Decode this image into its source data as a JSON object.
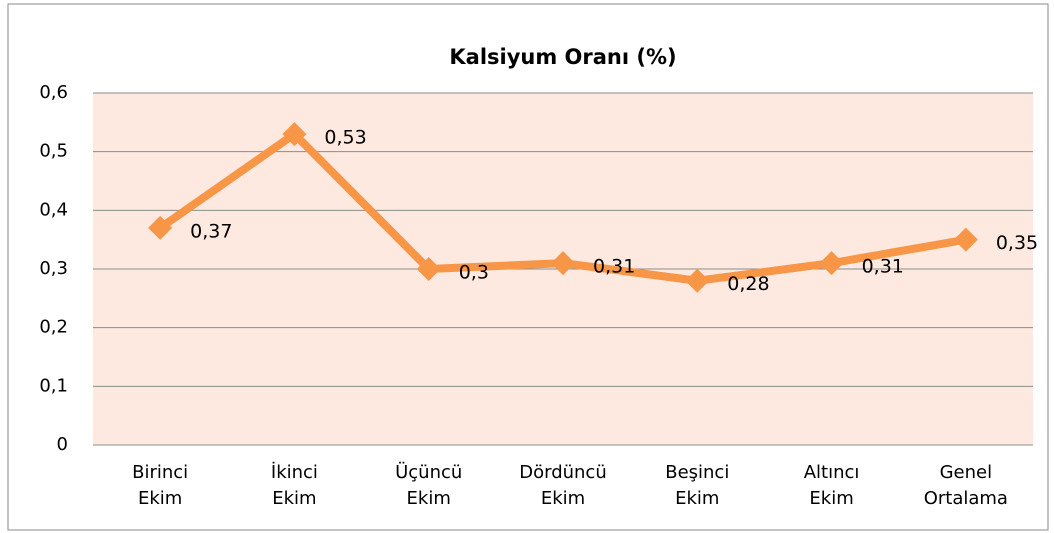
{
  "chart_data": {
    "type": "line",
    "title": "Kalsiyum Oranı (%)",
    "categories": [
      "Birinci Ekim",
      "İkinci Ekim",
      "Üçüncü Ekim",
      "Dördüncü Ekim",
      "Beşinci Ekim",
      "Altıncı Ekim",
      "Genel Ortalama"
    ],
    "values": [
      0.37,
      0.53,
      0.3,
      0.31,
      0.28,
      0.31,
      0.35
    ],
    "value_labels": [
      "0,37",
      "0,53",
      "0,3",
      "0,31",
      "0,28",
      "0,31",
      "0,35"
    ],
    "color": "#f79646",
    "ylim": [
      0,
      0.6
    ],
    "yticks": [
      0,
      {
        "value": 0.1,
        "label": "0,1"
      },
      {
        "value": 0.2,
        "label": "0,2"
      },
      {
        "value": 0.3,
        "label": "0,3"
      },
      {
        "value": 0.4,
        "label": "0,4"
      },
      {
        "value": 0.5,
        "label": "0,5"
      },
      {
        "value": 0.6,
        "label": "0,6"
      }
    ],
    "grid": true
  }
}
